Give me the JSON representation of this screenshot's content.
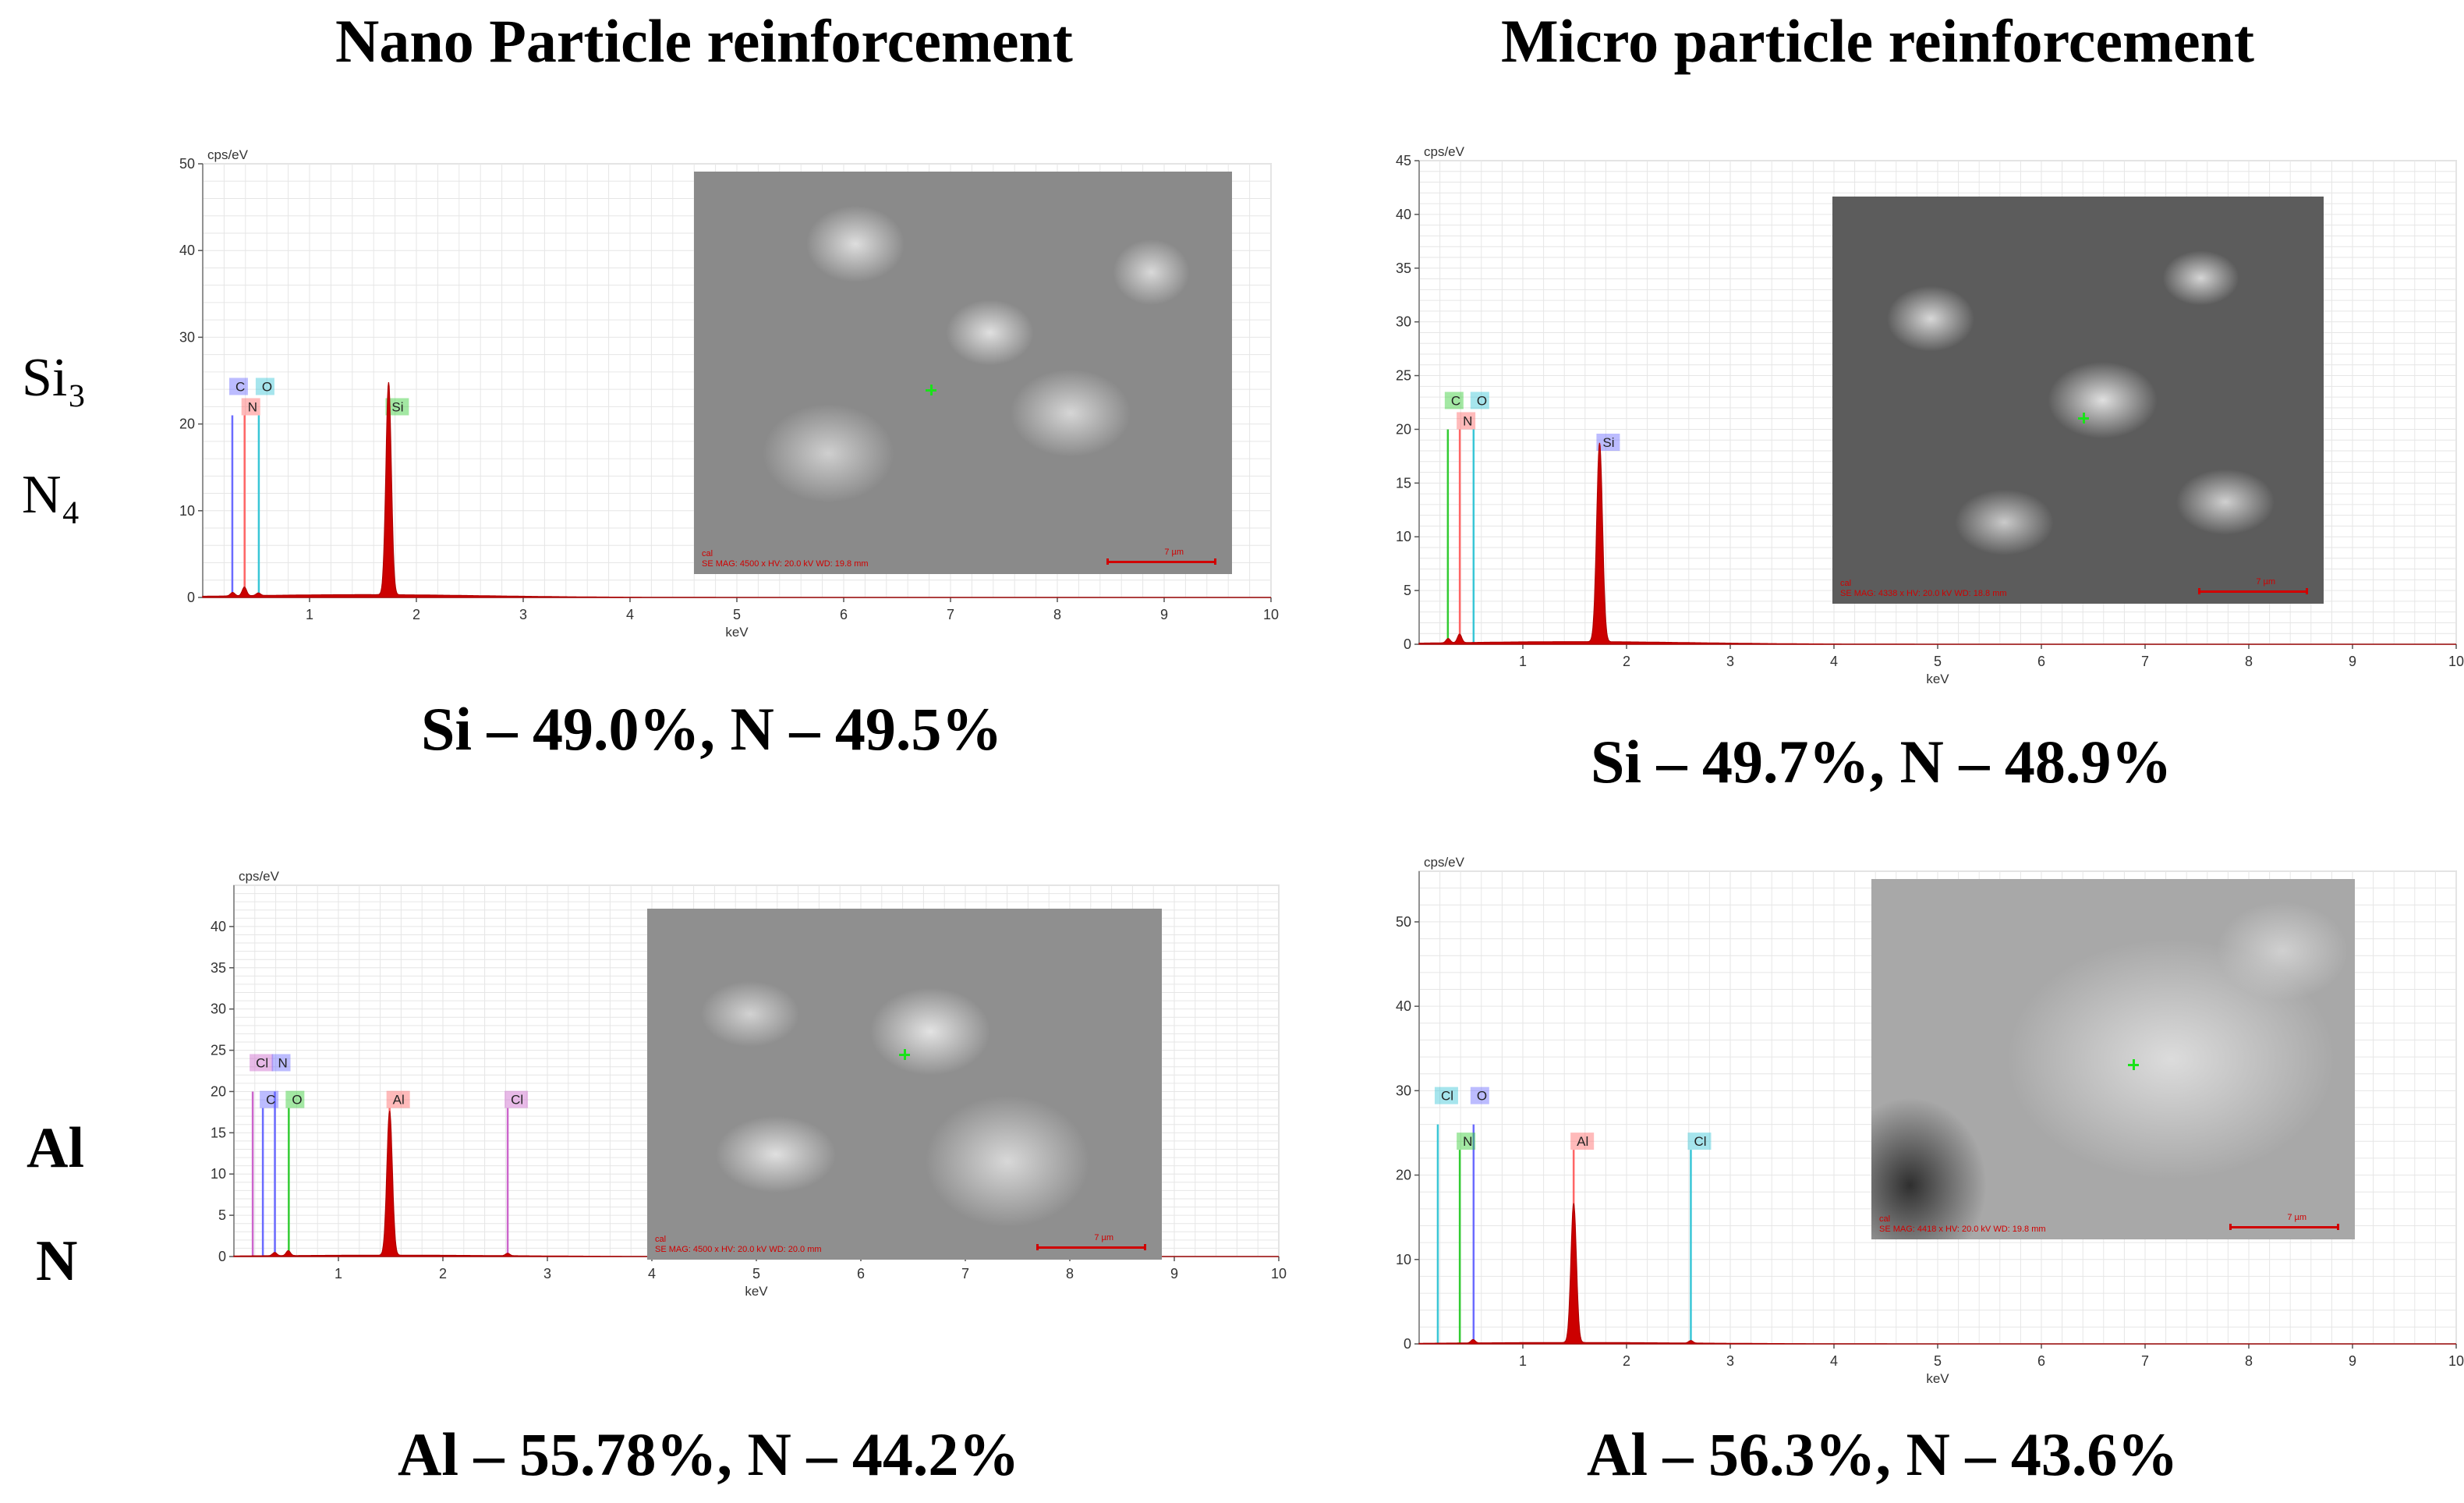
{
  "columns": {
    "nano_title": "Nano Particle reinforcement",
    "micro_title": "Micro particle reinforcement"
  },
  "rows": [
    {
      "label_lines": [
        "Si₃",
        "N₄"
      ]
    },
    {
      "label_lines": [
        "Al",
        "N"
      ]
    }
  ],
  "captions": {
    "si3n4_nano": "Si – 49.0%, N – 49.5%",
    "si3n4_micro": "Si – 49.7%, N – 48.9%",
    "aln_nano": "Al – 55.78%, N – 44.2%",
    "aln_micro": "Al – 56.3%, N – 43.6%"
  },
  "chart_data": [
    {
      "type": "line",
      "panel": "si3n4-nano",
      "ylabel": "cps/eV",
      "xlabel": "keV",
      "xlim": [
        0,
        10
      ],
      "ylim": [
        0,
        50
      ],
      "xticks": [
        1,
        2,
        3,
        4,
        5,
        6,
        7,
        8,
        9,
        10
      ],
      "yticks": [
        0,
        10,
        20,
        30,
        40,
        50
      ],
      "spectrum": {
        "peaks": [
          {
            "x": 1.74,
            "y": 24.5,
            "w": 0.025
          },
          {
            "x": 0.39,
            "y": 1.0,
            "w": 0.02
          },
          {
            "x": 0.28,
            "y": 0.4,
            "w": 0.02
          },
          {
            "x": 0.52,
            "y": 0.3,
            "w": 0.02
          }
        ],
        "baseline": 0.4
      },
      "element_lines": [
        {
          "element": "C",
          "energy": 0.277,
          "height": 21,
          "color": "#6b6bff",
          "label_row": 1
        },
        {
          "element": "O",
          "energy": 0.525,
          "height": 21,
          "color": "#39c6d6",
          "label_row": 1
        },
        {
          "element": "N",
          "energy": 0.392,
          "height": 21,
          "color": "#ff6666",
          "label_row": 0
        },
        {
          "element": "Si",
          "energy": 1.74,
          "height": 21,
          "color": "#33cc33",
          "label_row": 0
        }
      ],
      "sem": {
        "caption": "cal\nSE MAG: 4500 x HV: 20.0 kV WD: 19.8 mm",
        "scale": "7 µm"
      }
    },
    {
      "type": "line",
      "panel": "si3n4-micro",
      "ylabel": "cps/eV",
      "xlabel": "keV",
      "xlim": [
        0,
        10
      ],
      "ylim": [
        0,
        45
      ],
      "xticks": [
        1,
        2,
        3,
        4,
        5,
        6,
        7,
        8,
        9,
        10
      ],
      "yticks": [
        0,
        5,
        10,
        15,
        20,
        25,
        30,
        35,
        40,
        45
      ],
      "spectrum": {
        "peaks": [
          {
            "x": 1.74,
            "y": 18.5,
            "w": 0.028
          },
          {
            "x": 0.39,
            "y": 0.8,
            "w": 0.02
          },
          {
            "x": 0.28,
            "y": 0.4,
            "w": 0.02
          }
        ],
        "baseline": 0.3
      },
      "element_lines": [
        {
          "element": "C",
          "energy": 0.277,
          "height": 20,
          "color": "#33cc33",
          "label_row": 1
        },
        {
          "element": "O",
          "energy": 0.525,
          "height": 20,
          "color": "#39c6d6",
          "label_row": 1
        },
        {
          "element": "N",
          "energy": 0.392,
          "height": 20,
          "color": "#ff6666",
          "label_row": 0
        },
        {
          "element": "Si",
          "energy": 1.74,
          "height": 18,
          "color": "#6b6bff",
          "label_row": 0
        }
      ],
      "sem": {
        "caption": "cal\nSE MAG: 4338 x HV: 20.0 kV WD: 18.8 mm",
        "scale": "7 µm"
      }
    },
    {
      "type": "line",
      "panel": "aln-nano",
      "ylabel": "cps/eV",
      "xlabel": "keV",
      "xlim": [
        0,
        10
      ],
      "ylim": [
        0,
        45
      ],
      "xticks": [
        1,
        2,
        3,
        4,
        5,
        6,
        7,
        8,
        9,
        10
      ],
      "yticks": [
        0,
        5,
        10,
        15,
        20,
        25,
        30,
        35,
        40
      ],
      "spectrum": {
        "peaks": [
          {
            "x": 1.49,
            "y": 17.5,
            "w": 0.026
          },
          {
            "x": 0.52,
            "y": 0.6,
            "w": 0.02
          },
          {
            "x": 0.39,
            "y": 0.4,
            "w": 0.02
          },
          {
            "x": 2.62,
            "y": 0.3,
            "w": 0.02
          }
        ],
        "baseline": 0.2
      },
      "element_lines": [
        {
          "element": "Cl",
          "energy": 0.18,
          "height": 20,
          "color": "#cc66cc",
          "label_row": 1
        },
        {
          "element": "N",
          "energy": 0.392,
          "height": 20,
          "color": "#6b6bff",
          "label_row": 1
        },
        {
          "element": "C",
          "energy": 0.277,
          "height": 18,
          "color": "#6b6bff",
          "label_row": 0
        },
        {
          "element": "O",
          "energy": 0.525,
          "height": 18,
          "color": "#33cc33",
          "label_row": 0
        },
        {
          "element": "Al",
          "energy": 1.49,
          "height": 18,
          "color": "#ff6666",
          "label_row": 0
        },
        {
          "element": "Cl",
          "energy": 2.62,
          "height": 18,
          "color": "#cc66cc",
          "label_row": 0
        }
      ],
      "sem": {
        "caption": "cal\nSE MAG: 4500 x HV: 20.0 kV WD: 20.0 mm",
        "scale": "7 µm"
      }
    },
    {
      "type": "line",
      "panel": "aln-micro",
      "ylabel": "cps/eV",
      "xlabel": "keV",
      "xlim": [
        0,
        10
      ],
      "ylim": [
        0,
        56
      ],
      "xticks": [
        1,
        2,
        3,
        4,
        5,
        6,
        7,
        8,
        9,
        10
      ],
      "yticks": [
        0,
        10,
        20,
        30,
        40,
        50
      ],
      "spectrum": {
        "peaks": [
          {
            "x": 1.49,
            "y": 16.5,
            "w": 0.026
          },
          {
            "x": 0.52,
            "y": 0.4,
            "w": 0.02
          },
          {
            "x": 2.62,
            "y": 0.3,
            "w": 0.02
          }
        ],
        "baseline": 0.2
      },
      "element_lines": [
        {
          "element": "Cl",
          "energy": 0.18,
          "height": 26,
          "color": "#39c6d6",
          "label_row": 1
        },
        {
          "element": "O",
          "energy": 0.525,
          "height": 26,
          "color": "#6b6bff",
          "label_row": 1
        },
        {
          "element": "N",
          "energy": 0.392,
          "height": 23,
          "color": "#33cc33",
          "label_row": 0
        },
        {
          "element": "Al",
          "energy": 1.49,
          "height": 23,
          "color": "#ff6666",
          "label_row": 0
        },
        {
          "element": "Cl",
          "energy": 2.62,
          "height": 23,
          "color": "#39c6d6",
          "label_row": 0
        }
      ],
      "sem": {
        "caption": "cal\nSE MAG: 4418 x HV: 20.0 kV WD: 19.8 mm",
        "scale": "7 µm"
      }
    }
  ]
}
